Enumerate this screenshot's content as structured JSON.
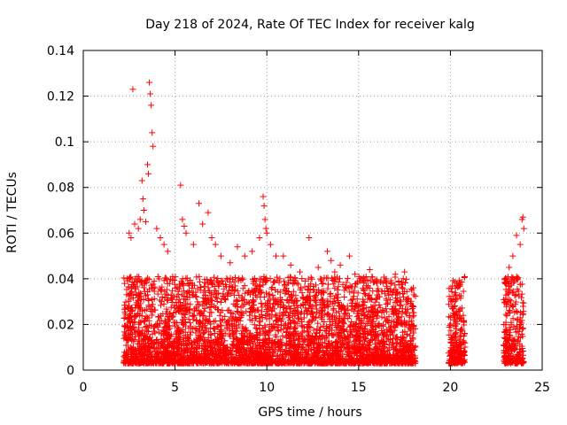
{
  "chart_data": {
    "type": "scatter",
    "title": "Day 218 of 2024, Rate Of TEC Index for receiver kalg",
    "xlabel": "GPS time / hours",
    "ylabel": "ROTI / TECUs",
    "xlim": [
      0,
      25
    ],
    "ylim": [
      0,
      0.14
    ],
    "x_ticks": [
      0,
      5,
      10,
      15,
      20,
      25
    ],
    "x_tick_labels": [
      "0",
      "5",
      "10",
      "15",
      "20",
      "25"
    ],
    "y_ticks": [
      0,
      0.02,
      0.04,
      0.06,
      0.08,
      0.1,
      0.12,
      0.14
    ],
    "y_tick_labels": [
      "0",
      "0.02",
      "0.04",
      "0.06",
      "0.08",
      "0.1",
      "0.12",
      "0.14"
    ],
    "grid": true,
    "marker": "+",
    "color": "#ff0000",
    "segments": [
      {
        "x_start": 2.2,
        "x_end": 18.1
      },
      {
        "x_start": 19.9,
        "x_end": 20.8
      },
      {
        "x_start": 22.9,
        "x_end": 24.0
      }
    ],
    "series": [
      {
        "name": "ROTI",
        "x": [
          2.7,
          3.6,
          3.65,
          3.7,
          3.75,
          3.8,
          3.5,
          3.55,
          3.2,
          3.25,
          3.3,
          3.4,
          2.5,
          2.6,
          2.8,
          3.0,
          3.1,
          4.0,
          4.2,
          4.4,
          4.6,
          5.3,
          5.4,
          5.5,
          5.6,
          6.0,
          6.3,
          6.5,
          6.8,
          7.0,
          7.2,
          7.5,
          8.0,
          8.4,
          8.8,
          9.2,
          9.6,
          9.8,
          9.85,
          9.9,
          9.95,
          10.0,
          10.2,
          10.5,
          10.9,
          11.3,
          11.8,
          12.3,
          12.8,
          13.3,
          13.5,
          13.7,
          14.0,
          14.5,
          14.8,
          15.2,
          15.6,
          16.0,
          16.5,
          17.0,
          17.5,
          17.9,
          20.1,
          20.3,
          20.5,
          20.7,
          23.0,
          23.2,
          23.4,
          23.6,
          23.8,
          23.9,
          23.95,
          24.0
        ],
        "y": [
          0.123,
          0.126,
          0.121,
          0.116,
          0.104,
          0.098,
          0.09,
          0.086,
          0.083,
          0.075,
          0.07,
          0.065,
          0.06,
          0.058,
          0.064,
          0.062,
          0.066,
          0.062,
          0.058,
          0.055,
          0.052,
          0.081,
          0.066,
          0.063,
          0.06,
          0.055,
          0.073,
          0.064,
          0.069,
          0.058,
          0.055,
          0.05,
          0.047,
          0.054,
          0.05,
          0.052,
          0.058,
          0.076,
          0.072,
          0.066,
          0.062,
          0.06,
          0.055,
          0.05,
          0.05,
          0.046,
          0.043,
          0.058,
          0.045,
          0.052,
          0.048,
          0.043,
          0.046,
          0.05,
          0.042,
          0.04,
          0.044,
          0.038,
          0.04,
          0.042,
          0.043,
          0.035,
          0.027,
          0.033,
          0.026,
          0.024,
          0.038,
          0.045,
          0.05,
          0.059,
          0.055,
          0.066,
          0.067,
          0.062
        ]
      }
    ]
  }
}
